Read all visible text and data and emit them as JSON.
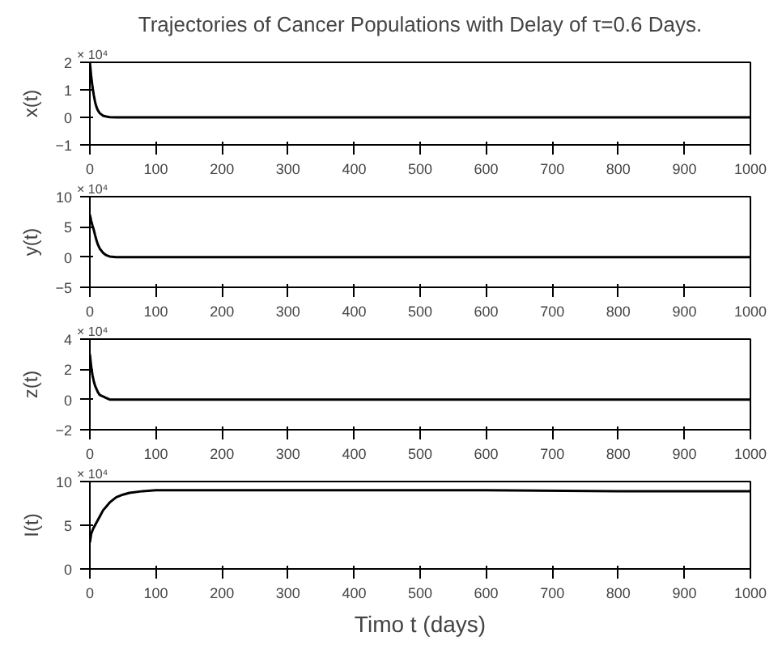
{
  "chart_data": [
    {
      "type": "line",
      "title": "Trajectories of Cancer Populations with Delay of τ=0.6 Days.",
      "ylabel": "x(t)",
      "annotations": [
        "× 10⁴"
      ],
      "x": [
        0,
        2,
        4,
        6,
        8,
        10,
        12,
        15,
        20,
        25,
        30,
        40,
        60,
        100,
        200,
        400,
        600,
        800,
        1000
      ],
      "series": [
        {
          "color": "#000000",
          "values": [
            2,
            1.5,
            1.1,
            0.8,
            0.55,
            0.38,
            0.26,
            0.15,
            0.06,
            0.03,
            0.01,
            0,
            0,
            0,
            0,
            0,
            0,
            0,
            0
          ]
        }
      ],
      "xlim": [
        0,
        1000
      ],
      "xticks": [
        0,
        100,
        200,
        300,
        400,
        500,
        600,
        700,
        800,
        900,
        1000
      ],
      "ylim": [
        -1,
        2
      ],
      "yticks": [
        -1,
        0,
        1,
        2
      ]
    },
    {
      "type": "line",
      "ylabel": "y(t)",
      "annotations": [
        "× 10⁴"
      ],
      "x": [
        0,
        2,
        4,
        6,
        8,
        10,
        12,
        15,
        20,
        25,
        30,
        40,
        60,
        100,
        200,
        400,
        600,
        800,
        1000
      ],
      "series": [
        {
          "color": "#000000",
          "values": [
            7,
            6,
            5.2,
            4.5,
            3.6,
            2.8,
            2.1,
            1.4,
            0.7,
            0.3,
            0.1,
            0,
            0,
            0,
            0,
            0,
            0,
            0,
            0
          ]
        }
      ],
      "xlim": [
        0,
        1000
      ],
      "xticks": [
        0,
        100,
        200,
        300,
        400,
        500,
        600,
        700,
        800,
        900,
        1000
      ],
      "ylim": [
        -5,
        10
      ],
      "yticks": [
        -5,
        0,
        5,
        10
      ]
    },
    {
      "type": "line",
      "ylabel": "z(t)",
      "annotations": [
        "× 10⁴"
      ],
      "x": [
        0,
        2,
        4,
        6,
        8,
        10,
        12,
        15,
        20,
        25,
        30,
        40,
        60,
        100,
        200,
        400,
        600,
        800,
        1000
      ],
      "series": [
        {
          "color": "#000000",
          "values": [
            3,
            2.2,
            1.6,
            1.2,
            0.9,
            0.7,
            0.5,
            0.3,
            0.2,
            0.1,
            0,
            0,
            0,
            0,
            0,
            0,
            0,
            0,
            0
          ]
        }
      ],
      "xlim": [
        0,
        1000
      ],
      "xticks": [
        0,
        100,
        200,
        300,
        400,
        500,
        600,
        700,
        800,
        900,
        1000
      ],
      "ylim": [
        -2,
        4
      ],
      "yticks": [
        -2,
        0,
        2,
        4
      ]
    },
    {
      "type": "line",
      "ylabel": "I(t)",
      "xlabel": "Timo t (days)",
      "annotations": [
        "× 10⁴"
      ],
      "x": [
        0,
        2,
        5,
        10,
        15,
        20,
        30,
        40,
        50,
        60,
        80,
        100,
        150,
        200,
        400,
        600,
        800,
        1000
      ],
      "series": [
        {
          "color": "#000000",
          "values": [
            3,
            4,
            4.6,
            5.3,
            6,
            6.7,
            7.6,
            8.2,
            8.5,
            8.7,
            8.9,
            9,
            9,
            9,
            9,
            9,
            8.9,
            8.9
          ]
        }
      ],
      "xlim": [
        0,
        1000
      ],
      "xticks": [
        0,
        100,
        200,
        300,
        400,
        500,
        600,
        700,
        800,
        900,
        1000
      ],
      "ylim": [
        0,
        10
      ],
      "yticks": [
        0,
        5,
        10
      ]
    }
  ]
}
